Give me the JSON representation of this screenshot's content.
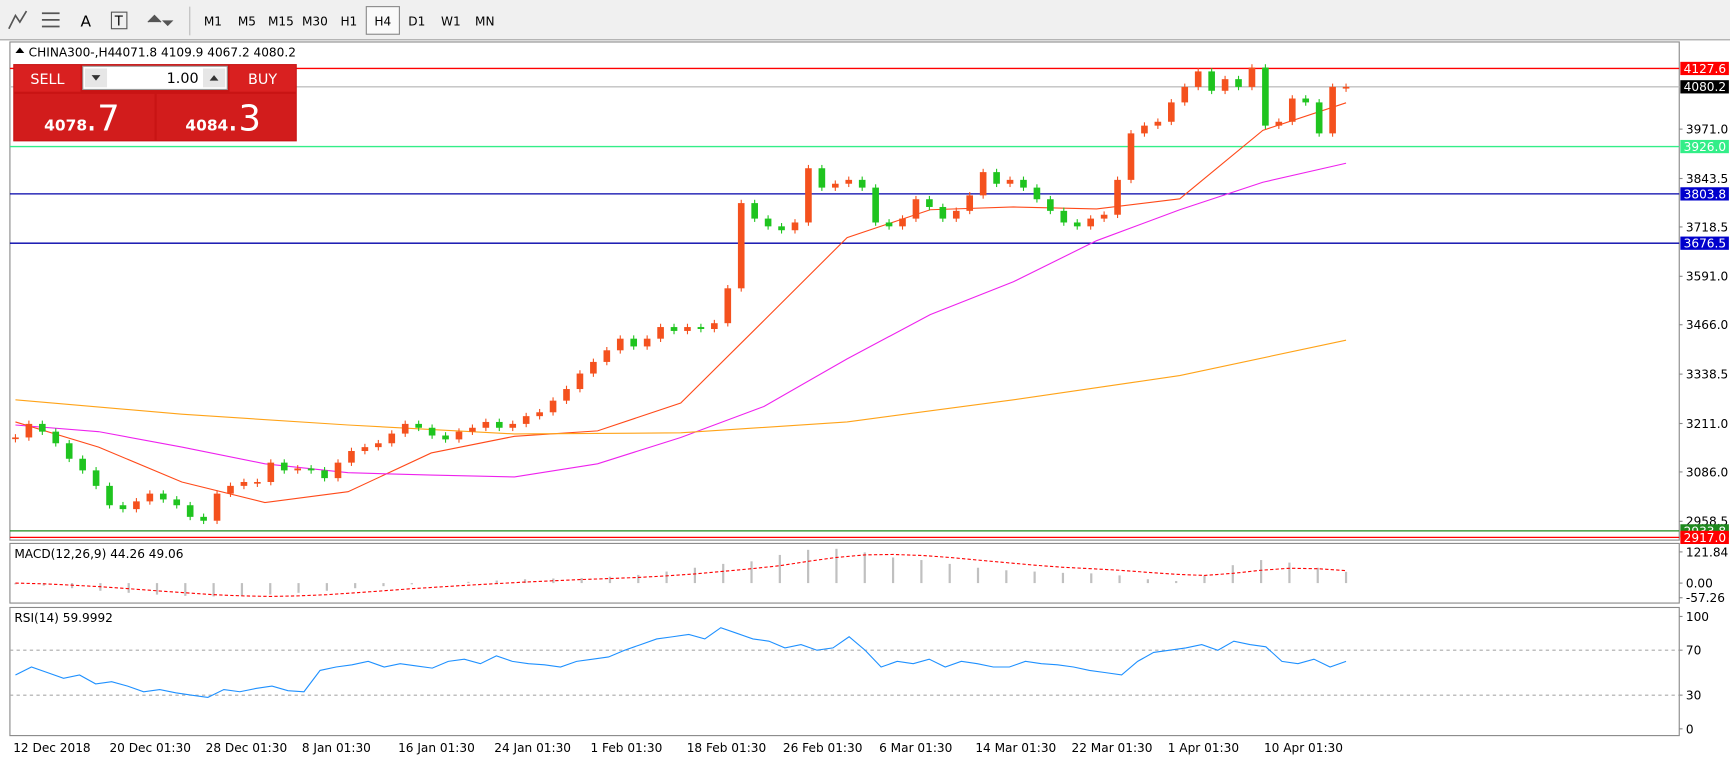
{
  "toolbar": {
    "icons": [
      "A",
      "T"
    ],
    "timeframes": [
      "M1",
      "M5",
      "M15",
      "M30",
      "H1",
      "H4",
      "D1",
      "W1",
      "MN"
    ],
    "selected": 5
  },
  "trade_panel": {
    "sell": "SELL",
    "buy": "BUY",
    "volume": "1.00",
    "bid_big": "4078",
    "bid_small": ".7",
    "ask_big": "4084",
    "ask_small": ".3"
  },
  "chart_data": [
    {
      "type": "candlestick",
      "title": "CHINA300-,H4",
      "subtitle": "4071.8 4109.9 4067.2 4080.2",
      "up_color": "#f4511e",
      "down_color": "#1fc41f",
      "values": [
        3175,
        3210,
        3190,
        3160,
        3120,
        3090,
        3050,
        3000,
        2990,
        3010,
        3030,
        3015,
        3000,
        2970,
        2960,
        3030,
        3050,
        3060,
        3060,
        3110,
        3090,
        3095,
        3090,
        3070,
        3110,
        3140,
        3150,
        3160,
        3185,
        3210,
        3200,
        3180,
        3170,
        3190,
        3200,
        3215,
        3200,
        3210,
        3230,
        3240,
        3270,
        3300,
        3340,
        3370,
        3400,
        3430,
        3410,
        3430,
        3460,
        3450,
        3460,
        3455,
        3470,
        3560,
        3780,
        3740,
        3720,
        3710,
        3730,
        3870,
        3820,
        3830,
        3840,
        3820,
        3730,
        3720,
        3740,
        3790,
        3770,
        3740,
        3760,
        3800,
        3860,
        3830,
        3840,
        3820,
        3790,
        3760,
        3730,
        3720,
        3740,
        3750,
        3840,
        3960,
        3980,
        3990,
        4040,
        4080,
        4120,
        4070,
        4100,
        4080,
        4130,
        3980,
        3990,
        4050,
        4040,
        3960,
        4080,
        4080
      ],
      "lines": [
        {
          "color": "#ff4a1a",
          "values": [
            3215,
            3150,
            3060,
            3007,
            3035,
            3135,
            3178,
            3192,
            3264,
            3477,
            3691,
            3763,
            3770,
            3765,
            3791,
            3968,
            4039
          ]
        },
        {
          "color": "#ee22ee",
          "values": [
            3207,
            3190,
            3150,
            3107,
            3084,
            3078,
            3073,
            3107,
            3175,
            3255,
            3378,
            3492,
            3577,
            3683,
            3763,
            3834,
            3883
          ]
        },
        {
          "color": "#ffa318",
          "values": [
            3272,
            3235,
            3207,
            3184,
            3187,
            3215,
            3272,
            3335,
            3426
          ]
        }
      ],
      "ylim": [
        2910,
        4196
      ],
      "yticks": [
        {
          "value": 3971,
          "label": "3971.0"
        },
        3843.5,
        3718.5,
        {
          "value": 3591,
          "label": "3591.0"
        },
        {
          "value": 3466,
          "label": "3466.0"
        },
        3338.5,
        {
          "value": 3211,
          "label": "3211.0"
        },
        {
          "value": 3086,
          "label": "3086.0"
        },
        2958.5
      ],
      "levels": [
        {
          "value": 4127.6,
          "color": "#ff0000",
          "line_color": "#ff0000",
          "text_color": "#ffffff"
        },
        {
          "value": 4080.2,
          "color": "#000000",
          "line_color": "#c0c0c0",
          "text_color": "#ffffff"
        },
        {
          "value": 3926,
          "label": "3926.0",
          "color": "#33ee88",
          "line_color": "#33ee88",
          "text_color": "#ffffff"
        },
        {
          "value": 3803.8,
          "color": "#0000cc",
          "line_color": "#0000aa",
          "text_color": "#ffffff"
        },
        {
          "value": 3676.5,
          "color": "#0000cc",
          "line_color": "#0000aa",
          "text_color": "#ffffff"
        },
        {
          "value": 2933.8,
          "color": "#1e8a1e",
          "line_color": "#1e8a1e",
          "text_color": "#ffffff"
        },
        {
          "value": 2917,
          "label": "2917.0",
          "color": "#ff0000",
          "line_color": "#ff0000",
          "text_color": "#ffffff"
        }
      ],
      "x_labels": [
        "12 Dec 2018",
        "20 Dec 01:30",
        "28 Dec 01:30",
        "8 Jan 01:30",
        "16 Jan 01:30",
        "24 Jan 01:30",
        "1 Feb 01:30",
        "18 Feb 01:30",
        "26 Feb 01:30",
        "6 Mar 01:30",
        "14 Mar 01:30",
        "22 Mar 01:30",
        "1 Apr 01:30",
        "10 Apr 01:30"
      ]
    },
    {
      "type": "macd",
      "title": "MACD(12,26,9) 44.26 49.06",
      "color": "#c0c0c0",
      "signal_color": "#ff0000",
      "values": [
        -5,
        -10,
        -20,
        -30,
        -38,
        -45,
        -50,
        -52,
        -50,
        -45,
        -38,
        -30,
        -20,
        -12,
        -5,
        0,
        5,
        10,
        15,
        18,
        20,
        25,
        32,
        45,
        60,
        75,
        85,
        110,
        130,
        134,
        120,
        100,
        90,
        75,
        60,
        50,
        45,
        40,
        38,
        30,
        15,
        8,
        30,
        70,
        90,
        80,
        60,
        44
      ],
      "signal": [
        0,
        -3,
        -8,
        -14,
        -22,
        -30,
        -38,
        -45,
        -50,
        -52,
        -50,
        -45,
        -38,
        -30,
        -22,
        -15,
        -8,
        -2,
        4,
        9,
        14,
        18,
        22,
        28,
        36,
        46,
        56,
        68,
        85,
        100,
        110,
        112,
        108,
        100,
        90,
        80,
        70,
        62,
        56,
        50,
        42,
        34,
        30,
        38,
        50,
        58,
        56,
        49
      ],
      "ylim": [
        -78,
        155
      ],
      "yticks": [
        121.84,
        {
          "value": 0,
          "label": "0.00"
        },
        -57.26
      ]
    },
    {
      "type": "line",
      "title": "RSI(14) 59.9992",
      "color": "#1e90ff",
      "values": [
        48,
        55,
        50,
        45,
        48,
        40,
        42,
        38,
        33,
        35,
        32,
        30,
        28,
        35,
        33,
        36,
        38,
        34,
        33,
        52,
        55,
        57,
        60,
        55,
        58,
        56,
        54,
        60,
        62,
        58,
        65,
        60,
        58,
        57,
        55,
        60,
        62,
        64,
        70,
        75,
        80,
        82,
        84,
        80,
        90,
        85,
        80,
        78,
        72,
        75,
        70,
        72,
        82,
        70,
        55,
        60,
        58,
        62,
        55,
        60,
        58,
        55,
        55,
        60,
        58,
        57,
        55,
        52,
        50,
        48,
        60,
        68,
        70,
        72,
        75,
        70,
        78,
        75,
        73,
        60,
        58,
        62,
        55,
        60
      ],
      "ylim": [
        -6,
        108
      ],
      "yticks": [
        100,
        70,
        30,
        0
      ]
    }
  ]
}
